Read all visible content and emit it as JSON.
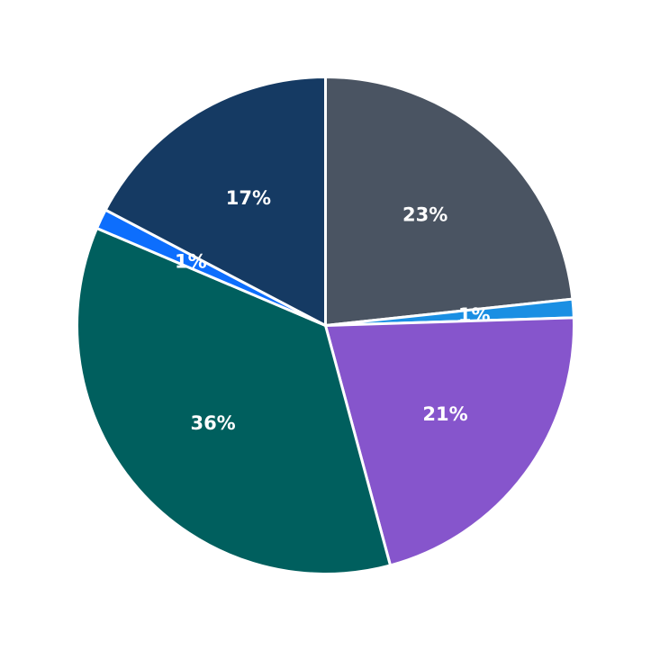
{
  "chart_data": {
    "type": "pie",
    "title": "",
    "start_angle": 90,
    "direction": "clockwise",
    "slices": [
      {
        "label": "23%",
        "value": 23.3,
        "color": "#4a5462"
      },
      {
        "label": "1%",
        "value": 1.2,
        "color": "#1a8fe3"
      },
      {
        "label": "21%",
        "value": 21.3,
        "color": "#8655cc"
      },
      {
        "label": "36%",
        "value": 35.6,
        "color": "#005f5e"
      },
      {
        "label": "1%",
        "value": 1.3,
        "color": "#0d6efd"
      },
      {
        "label": "17%",
        "value": 17.3,
        "color": "#153a63"
      }
    ],
    "legend": "none"
  }
}
